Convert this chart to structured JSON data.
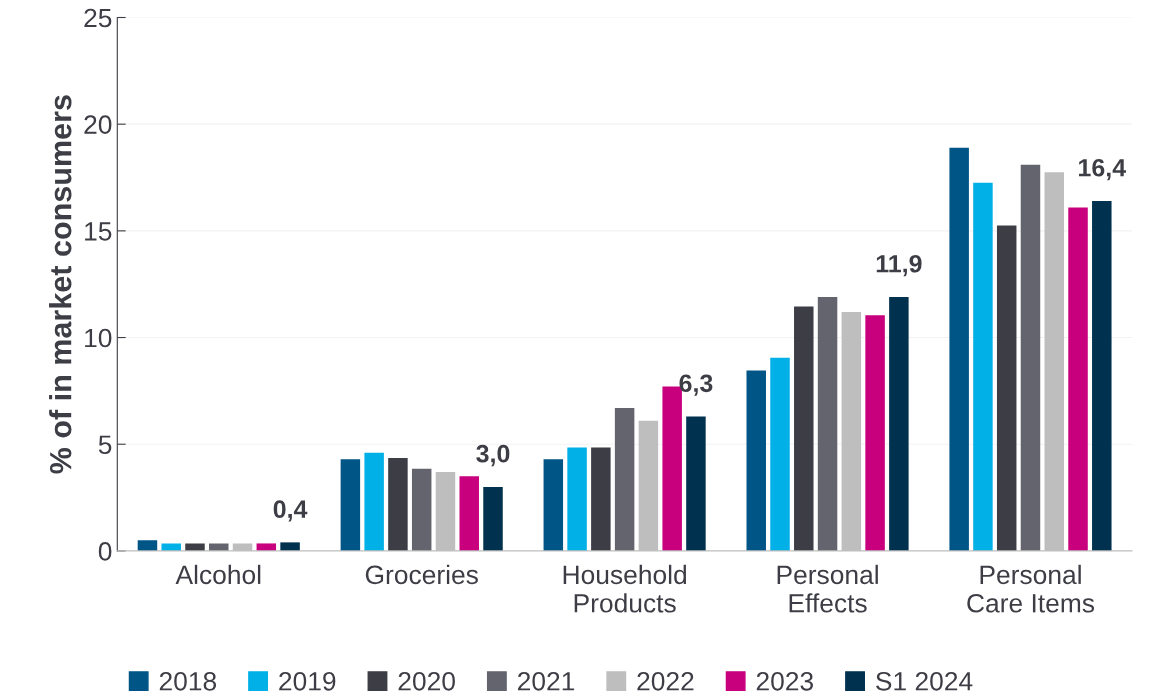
{
  "chart_data": {
    "type": "bar",
    "ylabel": "% of in market consumers",
    "categories": [
      "Alcohol",
      "Groceries",
      "Household\nProducts",
      "Personal\nEffects",
      "Personal\nCare Items"
    ],
    "series": [
      {
        "name": "2018",
        "color": "#005587",
        "values": [
          0.5,
          4.3,
          4.3,
          8.45,
          18.9
        ]
      },
      {
        "name": "2019",
        "color": "#00b0e6",
        "values": [
          0.35,
          4.6,
          4.85,
          9.05,
          17.25
        ]
      },
      {
        "name": "2020",
        "color": "#3d3d45",
        "values": [
          0.35,
          4.35,
          4.85,
          11.45,
          15.25
        ]
      },
      {
        "name": "2021",
        "color": "#64646e",
        "values": [
          0.35,
          3.85,
          6.7,
          11.9,
          18.1
        ]
      },
      {
        "name": "2022",
        "color": "#bebebe",
        "values": [
          0.35,
          3.7,
          6.1,
          11.2,
          17.75
        ]
      },
      {
        "name": "2023",
        "color": "#c8007d",
        "values": [
          0.35,
          3.5,
          7.7,
          11.05,
          16.1
        ]
      },
      {
        "name": "S1 2024",
        "color": "#00324f",
        "values": [
          0.4,
          3.0,
          6.3,
          11.9,
          16.4
        ],
        "value_labels": [
          "0,4",
          "3,0",
          "6,3",
          "11,9",
          "16,4"
        ]
      }
    ],
    "ylim": [
      0,
      25
    ],
    "yticks": [
      0,
      5,
      10,
      15,
      20,
      25
    ],
    "grid": "y",
    "legend": "bottom"
  }
}
